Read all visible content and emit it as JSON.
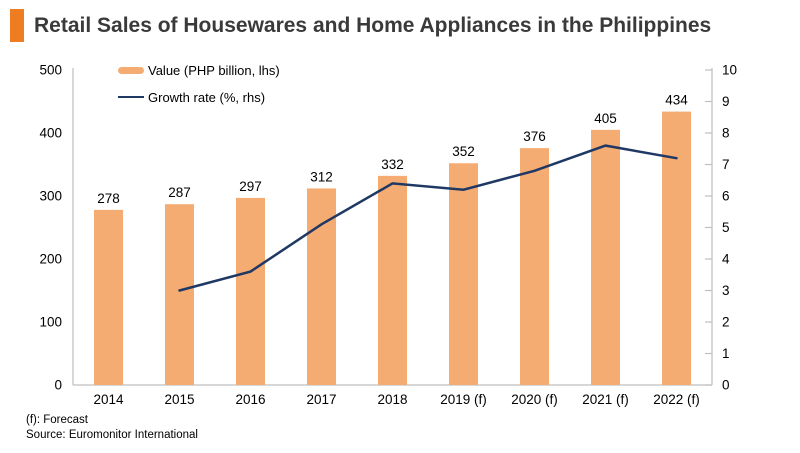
{
  "title": "Retail Sales of Housewares and Home Appliances in the Philippines",
  "legend": [
    {
      "label": "Value (PHP billion, lhs)",
      "marker": "bar-swatch"
    },
    {
      "label": "Growth rate (%, rhs)",
      "marker": "line-swatch"
    }
  ],
  "footnotes": {
    "forecast_note": "(f): Forecast",
    "source_note": "Source: Euromonitor International"
  },
  "colors": {
    "bar": "#F5AC72",
    "line": "#1F3864",
    "accent": "#EE7D22",
    "axis": "#BFBFBF",
    "title_text": "#3A3A3A",
    "label_text": "#000000"
  },
  "chart_data": {
    "type": "bar",
    "subtype": "bar-line-combo",
    "categories": [
      "2014",
      "2015",
      "2016",
      "2017",
      "2018",
      "2019 (f)",
      "2020 (f)",
      "2021 (f)",
      "2022 (f)"
    ],
    "series": [
      {
        "name": "Value (PHP billion, lhs)",
        "type": "bar",
        "axis": "left",
        "values": [
          278,
          287,
          297,
          312,
          332,
          352,
          376,
          405,
          434
        ]
      },
      {
        "name": "Growth rate (%, rhs)",
        "type": "line",
        "axis": "right",
        "values": [
          null,
          3.0,
          3.6,
          5.1,
          6.4,
          6.2,
          6.8,
          7.6,
          7.2
        ]
      }
    ],
    "left_axis": {
      "min": 0,
      "max": 500,
      "step": 100
    },
    "right_axis": {
      "min": 0,
      "max": 10,
      "step": 1
    },
    "grid": false,
    "data_labels": true,
    "legend_position": "top-left-inside"
  }
}
